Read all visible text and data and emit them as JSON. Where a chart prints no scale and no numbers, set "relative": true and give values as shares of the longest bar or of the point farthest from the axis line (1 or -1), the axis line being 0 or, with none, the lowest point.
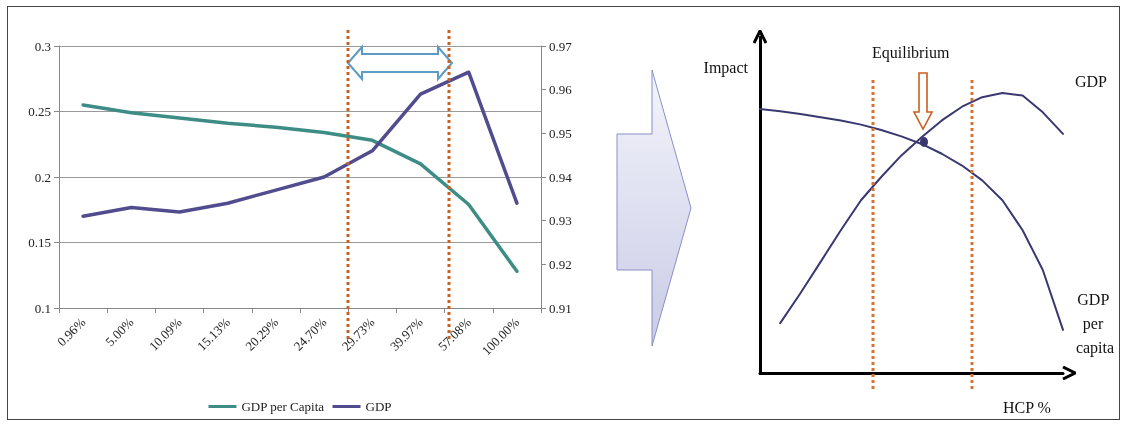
{
  "chart_data": [
    {
      "type": "line",
      "categories": [
        "0.96%",
        "5.00%",
        "10.09%",
        "15.13%",
        "20.29%",
        "24.70%",
        "29.73%",
        "39.97%",
        "57.08%",
        "100.00%"
      ],
      "series": [
        {
          "name": "GDP per Capita",
          "color": "#3e8c86",
          "values": [
            0.255,
            0.249,
            0.245,
            0.241,
            0.238,
            0.234,
            0.228,
            0.21,
            0.179,
            0.128
          ]
        },
        {
          "name": "GDP",
          "color": "#514c8e",
          "axis": "y2",
          "values": [
            0.931,
            0.933,
            0.932,
            0.934,
            0.937,
            0.94,
            0.946,
            0.959,
            0.964,
            0.934
          ]
        }
      ],
      "ylim": [
        0.1,
        0.3
      ],
      "yticks": [
        0.1,
        0.15,
        0.2,
        0.25,
        0.3
      ],
      "y2lim": [
        0.91,
        0.97
      ],
      "y2ticks": [
        0.91,
        0.92,
        0.93,
        0.94,
        0.95,
        0.96,
        0.97
      ],
      "grid": "y",
      "legend": "bottom",
      "marker": "none",
      "line_style": "solid"
    },
    {
      "type": "line",
      "relative": true,
      "categories": [
        null,
        null,
        null,
        null,
        null,
        null,
        null,
        null,
        null,
        null,
        null,
        null,
        null,
        null,
        null,
        null
      ],
      "series": [
        {
          "name": "GDP",
          "color": "#3a3870",
          "values": [
            null,
            0.178,
            0.285,
            0.397,
            0.51,
            0.617,
            0.7,
            0.777,
            0.842,
            0.902,
            0.951,
            0.985,
            1,
            0.991,
            0.931,
            0.854
          ]
        },
        {
          "name": "GDP per capita",
          "color": "#3a3870",
          "values": [
            0.943,
            0.935,
            0.925,
            0.913,
            0.902,
            0.887,
            0.868,
            0.845,
            0.818,
            0.783,
            0.741,
            0.688,
            0.617,
            0.51,
            0.368,
            0.154
          ]
        }
      ],
      "xlabel": "HCP %",
      "ylabel": "Impact",
      "annotations": [
        "Equilibrium"
      ],
      "marker": "none",
      "line_style": "solid"
    }
  ]
}
